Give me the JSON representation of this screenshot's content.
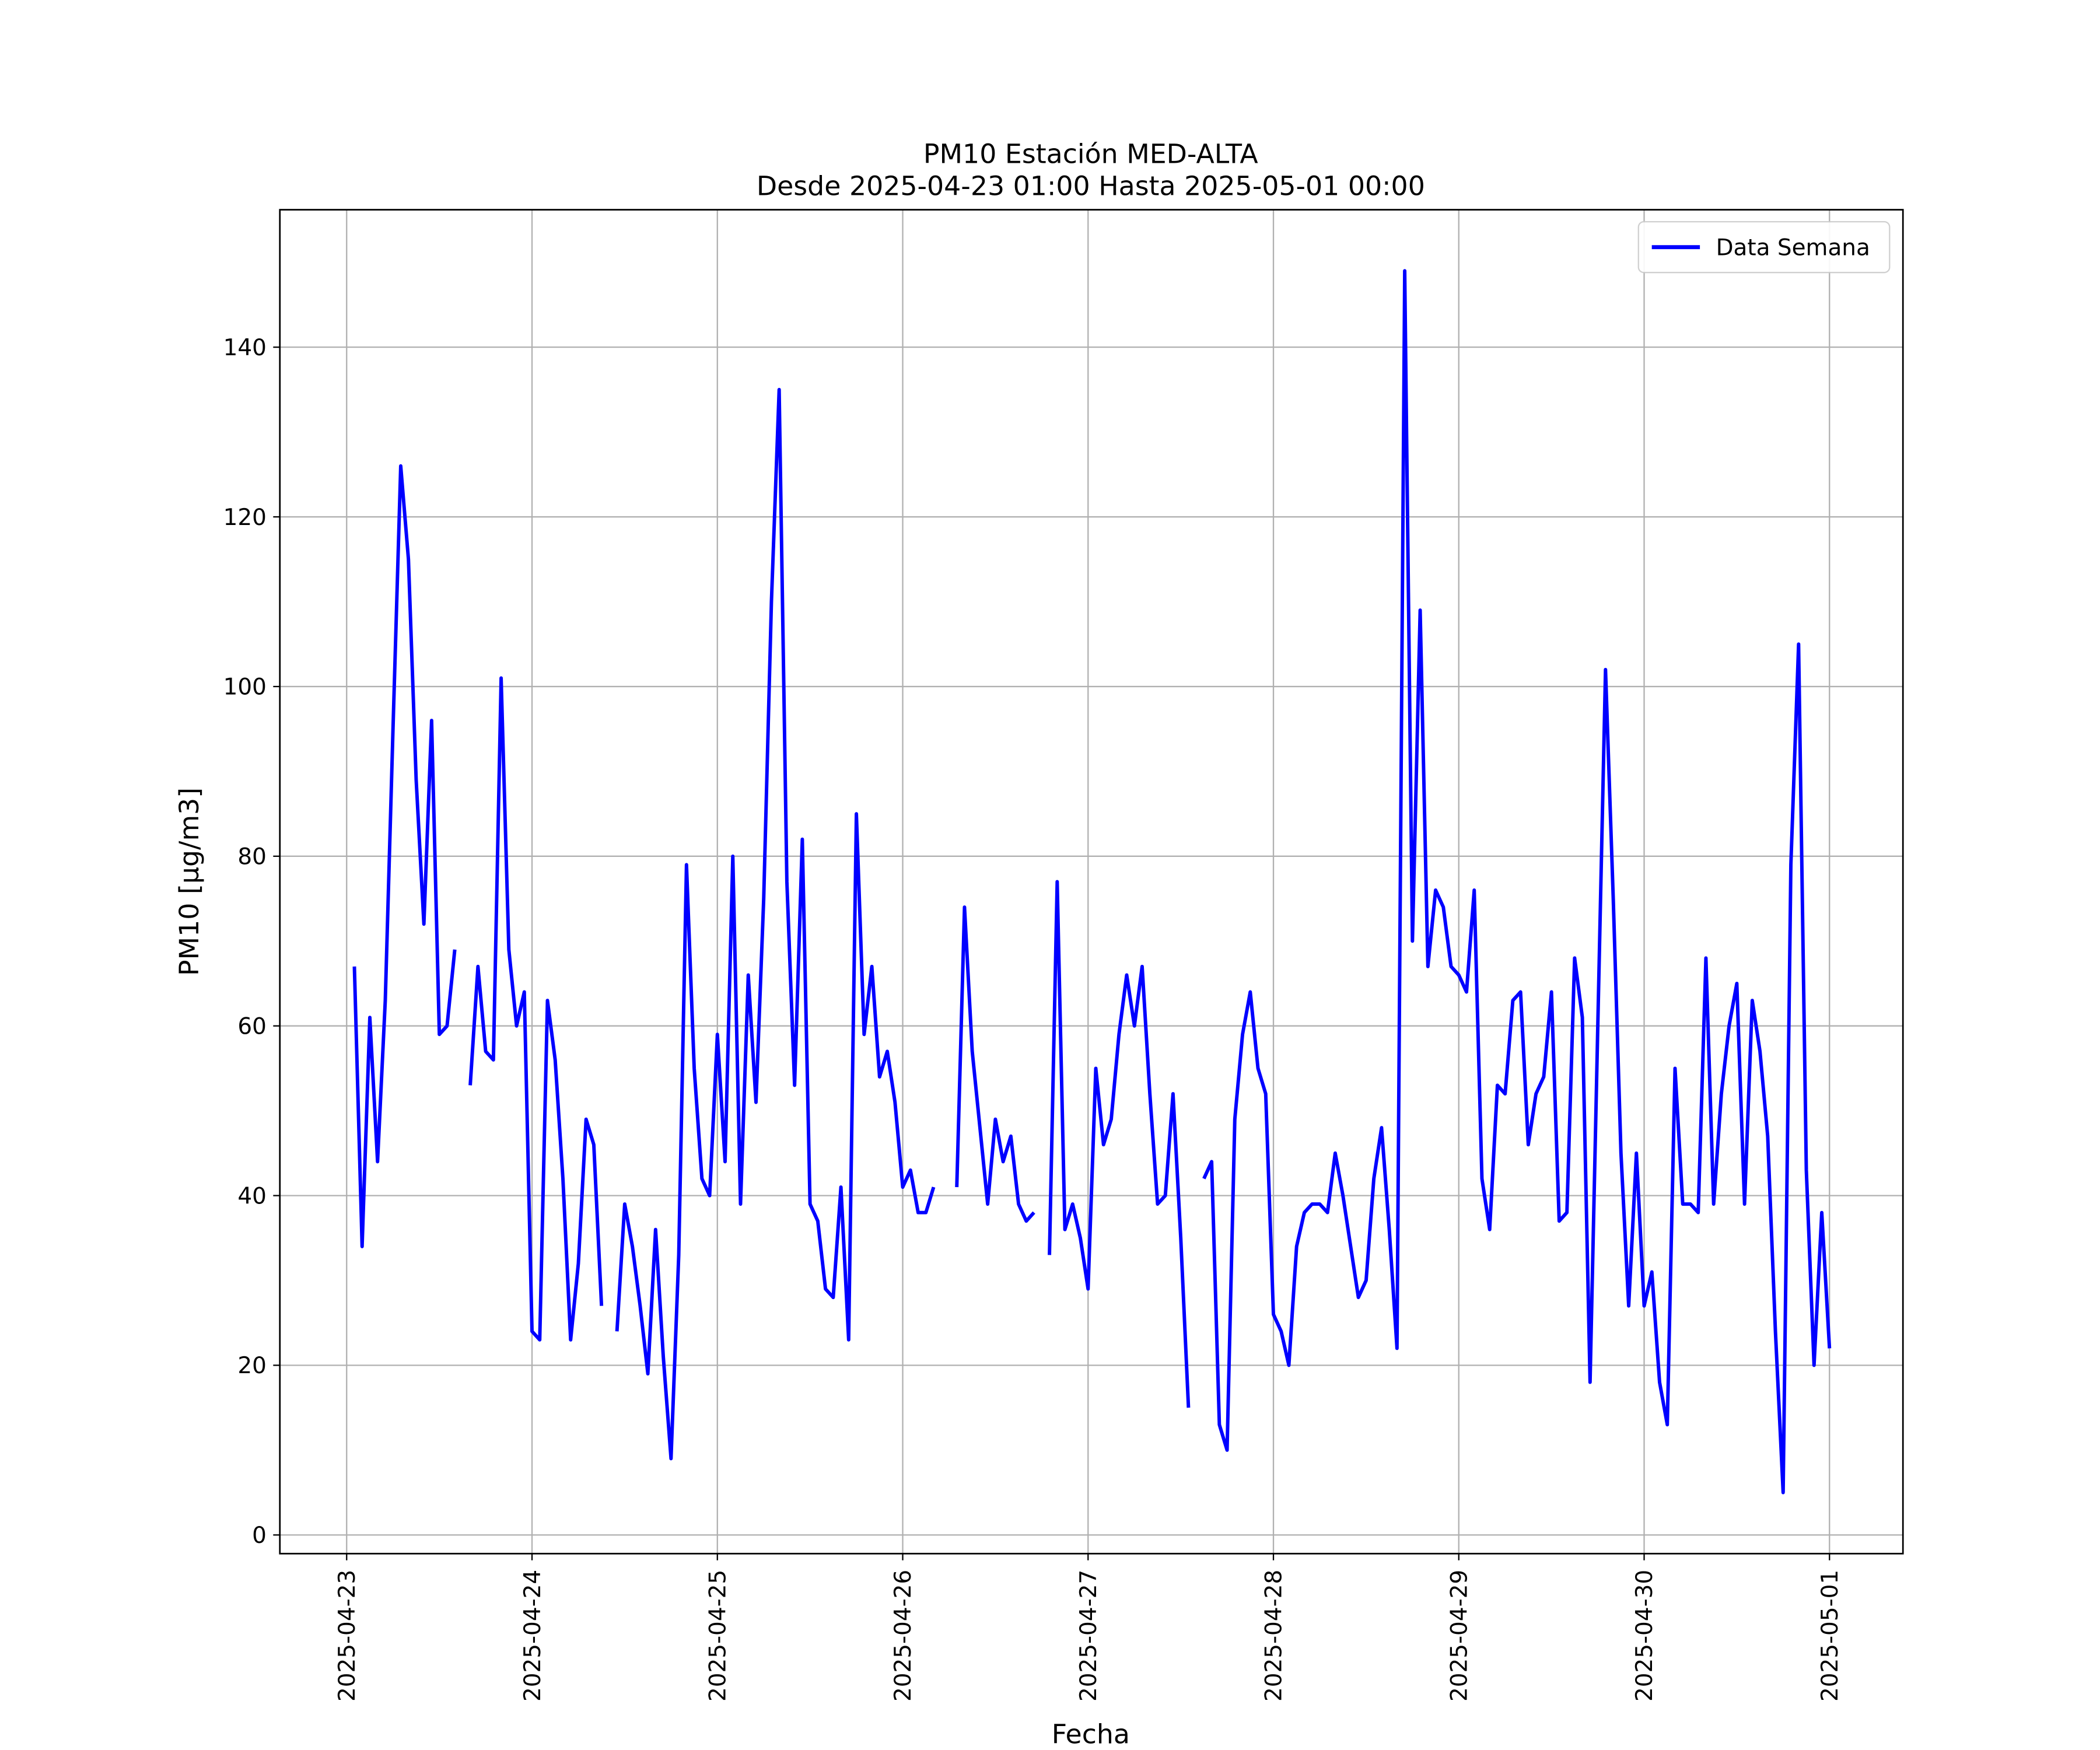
{
  "chart_data": {
    "type": "line",
    "title": "PM10 Estación MED-ALTA",
    "subtitle": "Desde 2025-04-23 01:00 Hasta 2025-05-01 00:00",
    "xlabel": "Fecha",
    "ylabel": "PM10 [μg/m3]",
    "xticks": [
      "2025-04-23",
      "2025-04-24",
      "2025-04-25",
      "2025-04-26",
      "2025-04-27",
      "2025-04-28",
      "2025-04-29",
      "2025-04-30",
      "2025-05-01"
    ],
    "ylim": [
      -2.2,
      156.2
    ],
    "yticks": [
      0,
      20,
      40,
      60,
      80,
      100,
      120,
      140
    ],
    "grid": true,
    "legend": "upper right",
    "series": [
      {
        "name": "Data Semana",
        "color": "#0000ff",
        "values": [
          67,
          34,
          61,
          44,
          63,
          95,
          126,
          115,
          89,
          72,
          96,
          59,
          60,
          69,
          null,
          53,
          67,
          57,
          56,
          101,
          69,
          60,
          64,
          24,
          23,
          63,
          56,
          42,
          23,
          32,
          49,
          46,
          27,
          null,
          24,
          39,
          34,
          27,
          19,
          36,
          21,
          9,
          33,
          79,
          55,
          42,
          40,
          59,
          44,
          80,
          39,
          66,
          51,
          75,
          110,
          135,
          77,
          53,
          82,
          39,
          37,
          29,
          28,
          41,
          23,
          85,
          59,
          67,
          54,
          57,
          51,
          41,
          43,
          38,
          38,
          41,
          null,
          null,
          41,
          74,
          57,
          48,
          39,
          49,
          44,
          47,
          39,
          37,
          38,
          null,
          33,
          77,
          36,
          39,
          35,
          29,
          55,
          46,
          49,
          59,
          66,
          60,
          67,
          52,
          39,
          40,
          52,
          35,
          15,
          null,
          42,
          44,
          13,
          10,
          49,
          59,
          64,
          55,
          52,
          26,
          24,
          20,
          34,
          38,
          39,
          39,
          38,
          45,
          40,
          34,
          28,
          30,
          42,
          48,
          36,
          22,
          149,
          70,
          109,
          67,
          76,
          74,
          67,
          66,
          64,
          76,
          42,
          36,
          53,
          52,
          63,
          64,
          46,
          52,
          54,
          64,
          37,
          38,
          68,
          61,
          18,
          60,
          102,
          75,
          45,
          27,
          45,
          27,
          31,
          18,
          13,
          55,
          39,
          39,
          38,
          68,
          39,
          52,
          60,
          65,
          39,
          63,
          57,
          47,
          24,
          5,
          79,
          105,
          43,
          20,
          38,
          22
        ]
      }
    ]
  }
}
